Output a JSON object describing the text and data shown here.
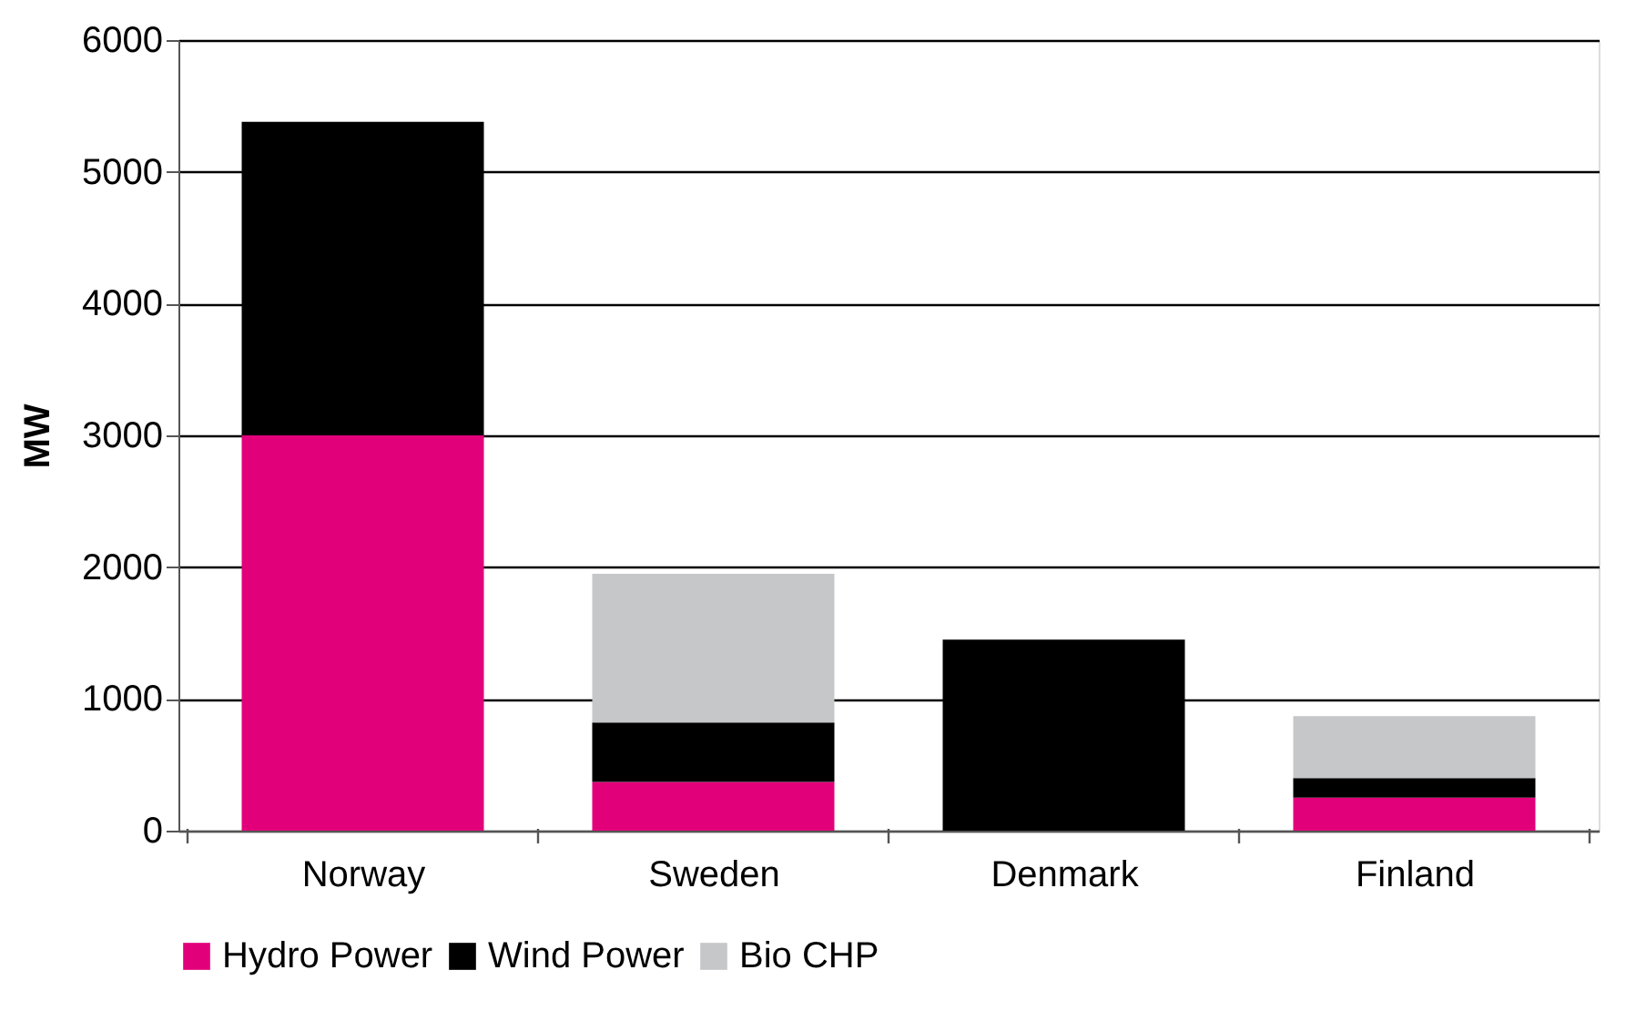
{
  "chart_data": {
    "type": "bar",
    "ylabel": "MW",
    "stacked": true,
    "categories": [
      "Norway",
      "Sweden",
      "Denmark",
      "Finland"
    ],
    "series": [
      {
        "name": "Hydro Power",
        "color": "#e2007a",
        "values": [
          3000,
          370,
          0,
          250
        ]
      },
      {
        "name": "Wind Power",
        "color": "#000000",
        "values": [
          2380,
          450,
          1450,
          150
        ]
      },
      {
        "name": "Bio CHP",
        "color": "#c6c7c9",
        "values": [
          0,
          1130,
          0,
          470
        ]
      }
    ],
    "ylim": [
      0,
      6000
    ],
    "yticks": [
      0,
      1000,
      2000,
      3000,
      4000,
      5000,
      6000
    ],
    "grid": "y",
    "legend": "bottom"
  }
}
